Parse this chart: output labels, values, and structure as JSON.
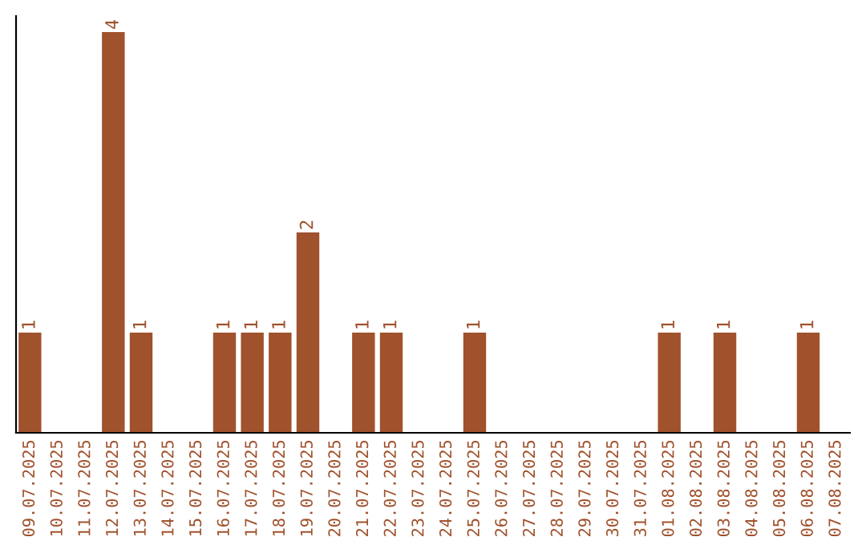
{
  "chart_data": {
    "type": "bar",
    "categories": [
      "09.07.2025",
      "10.07.2025",
      "11.07.2025",
      "12.07.2025",
      "13.07.2025",
      "14.07.2025",
      "15.07.2025",
      "16.07.2025",
      "17.07.2025",
      "18.07.2025",
      "19.07.2025",
      "20.07.2025",
      "21.07.2025",
      "22.07.2025",
      "23.07.2025",
      "24.07.2025",
      "25.07.2025",
      "26.07.2025",
      "27.07.2025",
      "28.07.2025",
      "29.07.2025",
      "30.07.2025",
      "31.07.2025",
      "01.08.2025",
      "02.08.2025",
      "03.08.2025",
      "04.08.2025",
      "05.08.2025",
      "06.08.2025",
      "07.08.2025"
    ],
    "values": [
      1,
      0,
      0,
      4,
      1,
      0,
      0,
      1,
      1,
      1,
      2,
      0,
      1,
      1,
      0,
      0,
      1,
      0,
      0,
      0,
      0,
      0,
      0,
      1,
      0,
      1,
      0,
      0,
      1,
      0
    ],
    "value_labels": [
      "1",
      null,
      null,
      "4",
      "1",
      null,
      null,
      "1",
      "1",
      "1",
      "2",
      null,
      "1",
      "1",
      null,
      null,
      "1",
      null,
      null,
      null,
      null,
      null,
      null,
      "1",
      null,
      "1",
      null,
      null,
      "1",
      null
    ],
    "color": "#a0522d",
    "grid": false,
    "legend": false,
    "tick_labels": "x"
  }
}
